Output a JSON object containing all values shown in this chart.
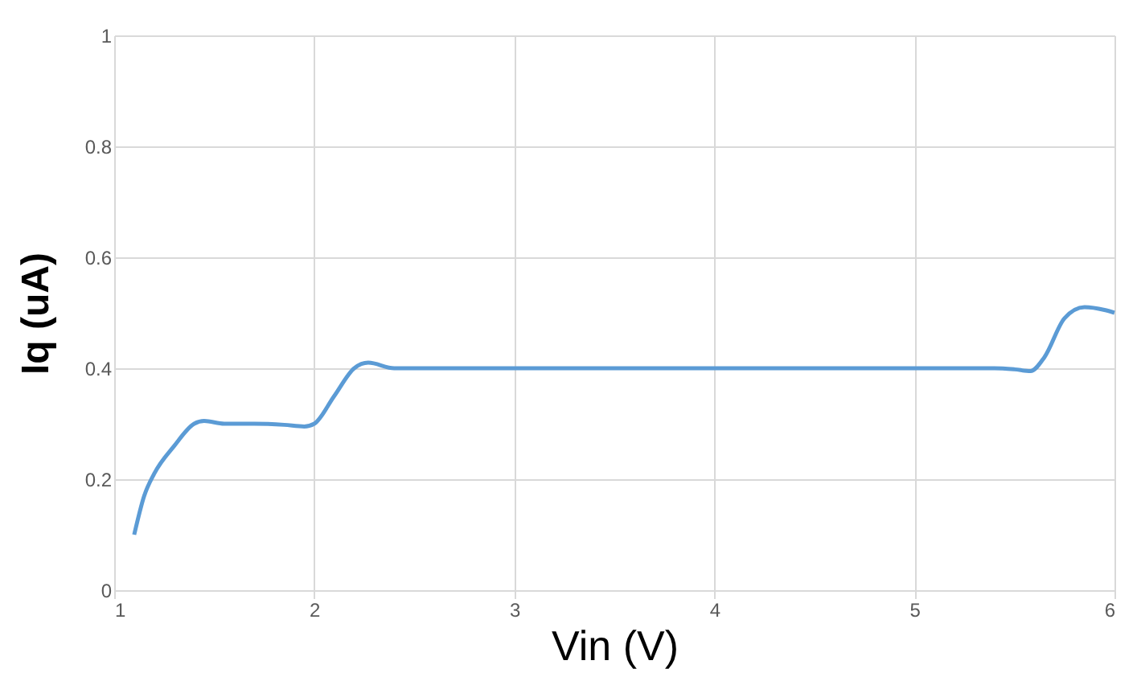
{
  "chart_data": {
    "type": "line",
    "xlabel": "Vin (V)",
    "ylabel": "Iq (uA)",
    "x": [
      1.1,
      1.15,
      1.2,
      1.3,
      1.4,
      1.45,
      1.55,
      1.7,
      1.85,
      1.95,
      2.0,
      2.1,
      2.2,
      2.27,
      2.4,
      3.0,
      4.0,
      5.0,
      5.4,
      5.5,
      5.58,
      5.65,
      5.75,
      5.85,
      5.95,
      6.0
    ],
    "series": [
      {
        "color": "#5b9bd5",
        "values": [
          0.1,
          0.17,
          0.21,
          0.26,
          0.3,
          0.305,
          0.3,
          0.3,
          0.298,
          0.295,
          0.3,
          0.35,
          0.4,
          0.41,
          0.4,
          0.4,
          0.4,
          0.4,
          0.4,
          0.398,
          0.395,
          0.42,
          0.49,
          0.51,
          0.505,
          0.5
        ]
      }
    ],
    "xlim": [
      1,
      6
    ],
    "xticks": [
      1,
      2,
      3,
      4,
      5,
      6
    ],
    "ylim": [
      0,
      1
    ],
    "yticks": [
      0,
      0.2,
      0.4,
      0.6,
      0.8,
      1
    ],
    "grid": true,
    "line_style": "solid",
    "marker": "none"
  }
}
